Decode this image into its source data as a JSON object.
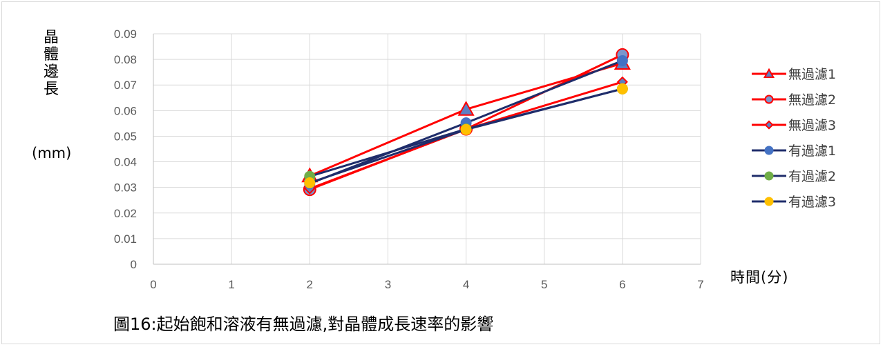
{
  "chart_data": {
    "type": "line",
    "title": "",
    "caption": "圖16:起始飽和溶液有無過濾,對晶體成長速率的影響",
    "ylabel": "晶體邊長",
    "ylabel_unit": "(mm)",
    "xlabel": "時間(分)",
    "xlim": [
      0,
      7
    ],
    "ylim": [
      0,
      0.09
    ],
    "x_ticks": [
      "0",
      "1",
      "2",
      "3",
      "4",
      "5",
      "6",
      "7"
    ],
    "y_ticks": [
      "0",
      "0.01",
      "0.02",
      "0.03",
      "0.04",
      "0.05",
      "0.06",
      "0.07",
      "0.08",
      "0.09"
    ],
    "grid": true,
    "legend_position": "right",
    "series": [
      {
        "name": "無過濾1",
        "line_color": "#ff0000",
        "marker": "triangle",
        "marker_fill": "#5b7fc4",
        "marker_edge": "#ff0000",
        "x": [
          2,
          4,
          6
        ],
        "y": [
          0.0345,
          0.0605,
          0.0785
        ]
      },
      {
        "name": "無過濾2",
        "line_color": "#ff0000",
        "marker": "circle",
        "marker_fill": "#7b96cc",
        "marker_edge": "#ff0000",
        "x": [
          2,
          4,
          6
        ],
        "y": [
          0.0292,
          0.0528,
          0.0818
        ]
      },
      {
        "name": "無過濾3",
        "line_color": "#ff0000",
        "marker": "diamond",
        "marker_fill": "#5b7fc4",
        "marker_edge": "#ff0000",
        "x": [
          2,
          4,
          6
        ],
        "y": [
          0.0295,
          0.0527,
          0.0712
        ]
      },
      {
        "name": "有過濾1",
        "line_color": "#1f2d6b",
        "marker": "circle",
        "marker_fill": "#4472c4",
        "marker_edge": "#4472c4",
        "x": [
          2,
          4,
          6
        ],
        "y": [
          0.0315,
          0.0552,
          0.0795
        ]
      },
      {
        "name": "有過濾2",
        "line_color": "#1f2d6b",
        "marker": "circle",
        "marker_fill": "#70ad47",
        "marker_edge": "#70ad47",
        "x": [
          2,
          4,
          6
        ],
        "y": [
          0.0343,
          0.0528,
          0.0685
        ]
      },
      {
        "name": "有過濾3",
        "line_color": "#1f2d6b",
        "marker": "circle",
        "marker_fill": "#ffc000",
        "marker_edge": "#ffc000",
        "x": [
          2,
          4,
          6
        ],
        "y": [
          0.0318,
          0.0526,
          0.0685
        ]
      }
    ]
  }
}
